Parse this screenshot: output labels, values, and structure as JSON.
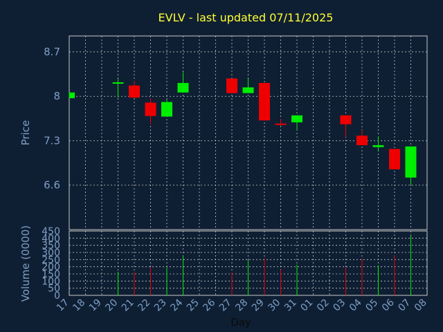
{
  "colors": {
    "background": "#0f1f33",
    "title": "#ffff33",
    "axis_text": "#7f9fc7",
    "grid": "#c8c8c8",
    "up": "#00ee00",
    "down": "#ee0000"
  },
  "chart_data": [
    {
      "type": "candlestick",
      "title": "EVLV - last updated 07/11/2025",
      "ylabel": "Price",
      "ylim": [
        5.9,
        8.95
      ],
      "yticks": [
        6.6,
        7.3,
        8,
        8.7
      ],
      "ytick_labels": [
        "6.6",
        "7.3",
        "8",
        "8.7"
      ],
      "grid": true,
      "candles": [
        {
          "x": "17",
          "open": 7.97,
          "close": 8.06,
          "high": 8.06,
          "low": 7.97
        },
        {
          "x": "20",
          "open": 8.2,
          "close": 8.22,
          "high": 8.27,
          "low": 7.98
        },
        {
          "x": "21",
          "open": 8.17,
          "close": 7.98,
          "high": 8.24,
          "low": 7.97
        },
        {
          "x": "22",
          "open": 7.9,
          "close": 7.69,
          "high": 7.97,
          "low": 7.56
        },
        {
          "x": "23",
          "open": 7.68,
          "close": 7.91,
          "high": 7.95,
          "low": 7.68
        },
        {
          "x": "24",
          "open": 8.06,
          "close": 8.21,
          "high": 8.38,
          "low": 8.06
        },
        {
          "x": "27",
          "open": 8.28,
          "close": 8.05,
          "high": 8.28,
          "low": 8.05
        },
        {
          "x": "28",
          "open": 8.05,
          "close": 8.14,
          "high": 8.28,
          "low": 8.05
        },
        {
          "x": "29",
          "open": 8.21,
          "close": 7.62,
          "high": 8.21,
          "low": 7.62
        },
        {
          "x": "30",
          "open": 7.57,
          "close": 7.55,
          "high": 7.64,
          "low": 7.54
        },
        {
          "x": "31",
          "open": 7.59,
          "close": 7.7,
          "high": 7.7,
          "low": 7.46
        },
        {
          "x": "03",
          "open": 7.7,
          "close": 7.56,
          "high": 7.7,
          "low": 7.36
        },
        {
          "x": "04",
          "open": 7.38,
          "close": 7.23,
          "high": 7.47,
          "low": 7.23
        },
        {
          "x": "05",
          "open": 7.2,
          "close": 7.23,
          "high": 7.37,
          "low": 7.14
        },
        {
          "x": "06",
          "open": 7.17,
          "close": 6.85,
          "high": 7.17,
          "low": 6.85
        },
        {
          "x": "07",
          "open": 6.72,
          "close": 7.21,
          "high": 7.21,
          "low": 6.6
        }
      ]
    },
    {
      "type": "bar",
      "xlabel": "Day",
      "ylabel": "Volume (0000)",
      "ylim": [
        0,
        450
      ],
      "yticks": [
        0,
        50,
        100,
        150,
        200,
        250,
        300,
        350,
        400,
        450
      ],
      "ytick_labels": [
        "0",
        "50",
        "100",
        "150",
        "200",
        "250",
        "300",
        "350",
        "400",
        "450"
      ],
      "categories": [
        "17",
        "18",
        "19",
        "20",
        "21",
        "22",
        "23",
        "24",
        "25",
        "26",
        "27",
        "28",
        "29",
        "30",
        "31",
        "01",
        "02",
        "03",
        "04",
        "05",
        "06",
        "07",
        "08"
      ],
      "bars": [
        {
          "x": "17",
          "value": 0,
          "direction": "up"
        },
        {
          "x": "20",
          "value": 165,
          "direction": "up"
        },
        {
          "x": "21",
          "value": 165,
          "direction": "down"
        },
        {
          "x": "22",
          "value": 195,
          "direction": "down"
        },
        {
          "x": "23",
          "value": 195,
          "direction": "up"
        },
        {
          "x": "24",
          "value": 280,
          "direction": "up"
        },
        {
          "x": "27",
          "value": 160,
          "direction": "down"
        },
        {
          "x": "28",
          "value": 245,
          "direction": "up"
        },
        {
          "x": "29",
          "value": 260,
          "direction": "down"
        },
        {
          "x": "30",
          "value": 180,
          "direction": "down"
        },
        {
          "x": "31",
          "value": 215,
          "direction": "up"
        },
        {
          "x": "03",
          "value": 195,
          "direction": "down"
        },
        {
          "x": "04",
          "value": 255,
          "direction": "down"
        },
        {
          "x": "05",
          "value": 210,
          "direction": "up"
        },
        {
          "x": "06",
          "value": 280,
          "direction": "down"
        },
        {
          "x": "07",
          "value": 420,
          "direction": "up"
        }
      ]
    }
  ]
}
